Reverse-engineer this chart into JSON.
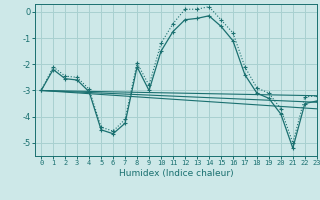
{
  "title": "",
  "xlabel": "Humidex (Indice chaleur)",
  "ylabel": "",
  "background_color": "#cde8e8",
  "grid_color": "#a8d0d0",
  "line_color": "#1a7070",
  "xlim": [
    -0.5,
    23
  ],
  "ylim": [
    -5.5,
    0.3
  ],
  "yticks": [
    0,
    -1,
    -2,
    -3,
    -4,
    -5
  ],
  "xticks": [
    0,
    1,
    2,
    3,
    4,
    5,
    6,
    7,
    8,
    9,
    10,
    11,
    12,
    13,
    14,
    15,
    16,
    17,
    18,
    19,
    20,
    21,
    22,
    23
  ],
  "series1_x": [
    0,
    1,
    2,
    3,
    4,
    5,
    6,
    7,
    8,
    9,
    10,
    11,
    12,
    13,
    14,
    15,
    16,
    17,
    18,
    19,
    20,
    21,
    22,
    23
  ],
  "series1_y": [
    -3.0,
    -2.2,
    -2.55,
    -2.6,
    -3.05,
    -4.5,
    -4.65,
    -4.25,
    -2.1,
    -3.0,
    -1.5,
    -0.75,
    -0.3,
    -0.25,
    -0.15,
    -0.55,
    -1.1,
    -2.4,
    -3.1,
    -3.3,
    -3.9,
    -5.2,
    -3.5,
    -3.4
  ],
  "series2_x": [
    0,
    1,
    2,
    3,
    4,
    5,
    6,
    7,
    8,
    9,
    10,
    11,
    12,
    13,
    14,
    15,
    16,
    17,
    18,
    19,
    20,
    21,
    22,
    23
  ],
  "series2_y": [
    -3.0,
    -2.1,
    -2.45,
    -2.5,
    -2.95,
    -4.4,
    -4.55,
    -4.1,
    -1.95,
    -2.8,
    -1.2,
    -0.45,
    0.1,
    0.1,
    0.2,
    -0.3,
    -0.8,
    -2.1,
    -2.9,
    -3.1,
    -3.7,
    -5.0,
    -3.25,
    -3.2
  ],
  "series3_x": [
    0,
    23
  ],
  "series3_y": [
    -3.0,
    -3.7
  ],
  "series4_x": [
    0,
    23
  ],
  "series4_y": [
    -3.0,
    -3.45
  ],
  "series5_x": [
    0,
    23
  ],
  "series5_y": [
    -3.0,
    -3.2
  ]
}
